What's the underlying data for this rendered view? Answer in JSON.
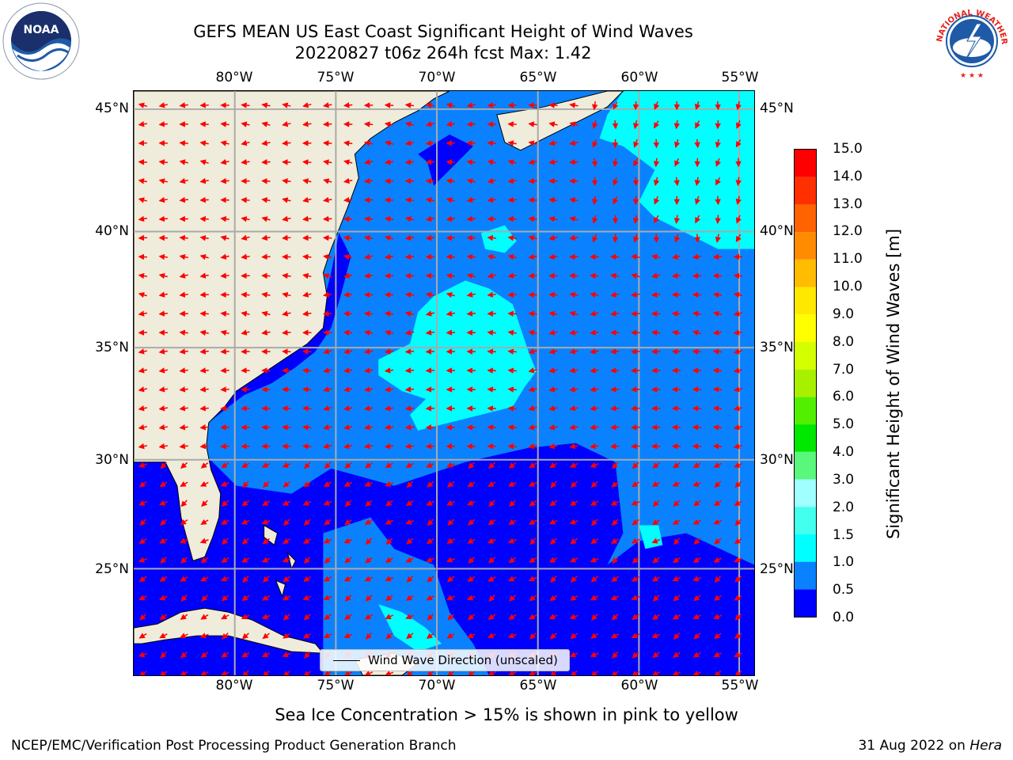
{
  "title": {
    "line1": "GEFS MEAN US East Coast Significant Height of Wind Waves",
    "line2": "20220827 t06z 264h fcst   Max: 1.42"
  },
  "map": {
    "lon_labels": [
      "80°W",
      "75°W",
      "70°W",
      "65°W",
      "60°W",
      "55°W"
    ],
    "lat_labels": [
      "45°N",
      "40°N",
      "35°N",
      "30°N",
      "25°N"
    ],
    "land_color": "#efecdb",
    "legend_label": "Wind Wave Direction (unscaled)",
    "arrow_color": "#ff0000"
  },
  "colorbar": {
    "label": "Significant Height of Wind Waves [m]",
    "tick_labels": [
      "0.0",
      "0.5",
      "1.0",
      "1.5",
      "2.0",
      "3.0",
      "4.0",
      "5.0",
      "6.0",
      "7.0",
      "8.0",
      "9.0",
      "10.0",
      "11.0",
      "12.0",
      "13.0",
      "14.0",
      "15.0"
    ],
    "colors": [
      "#0000ff",
      "#0a82ff",
      "#00ffff",
      "#42ffee",
      "#a0ffff",
      "#5af77d",
      "#00e800",
      "#52f000",
      "#a8f000",
      "#d4ff00",
      "#ffff00",
      "#ffe800",
      "#ffbc00",
      "#ff8c00",
      "#ff6400",
      "#ff3000",
      "#ff0000"
    ]
  },
  "note": "Sea Ice Concentration > 15% is shown in pink to yellow",
  "footer": {
    "credit": "NCEP/EMC/Verification Post Processing Product Generation Branch",
    "date_prefix": "31 Aug 2022 on ",
    "machine": "Hera"
  },
  "logos": {
    "noaa": "NOAA",
    "nws": "NATIONAL WEATHER SERVICE"
  }
}
